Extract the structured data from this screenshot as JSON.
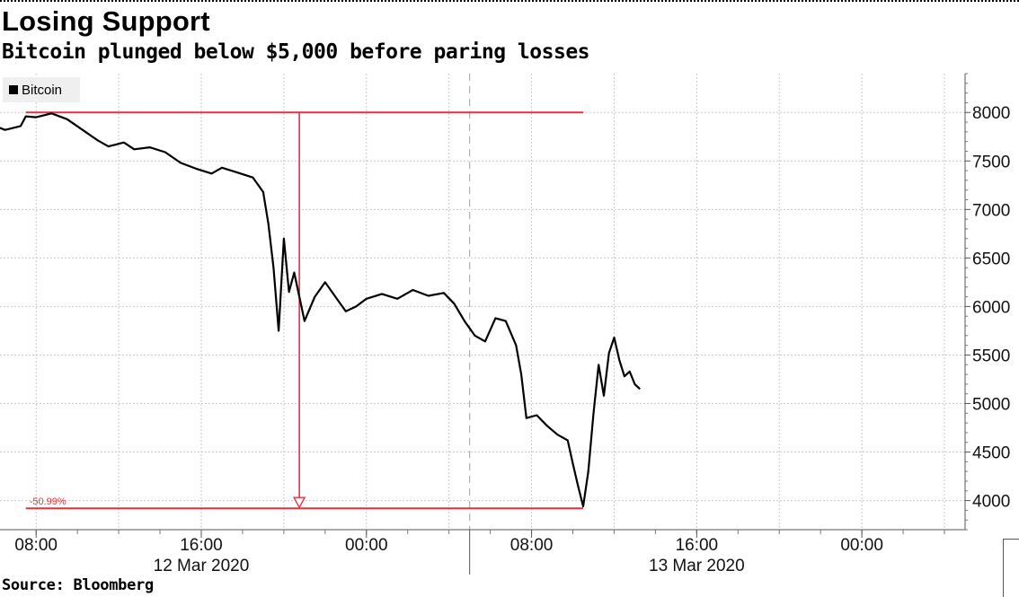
{
  "title": "Losing Support",
  "subtitle": "Bitcoin plunged below $5,000 before paring losses",
  "source": "Source: Bloomberg",
  "chart_data": {
    "type": "line",
    "series": [
      {
        "name": "Bitcoin",
        "color": "#000000",
        "points": [
          [
            "2020-03-12 05:45",
            7880
          ],
          [
            "2020-03-12 06:30",
            7820
          ],
          [
            "2020-03-12 07:15",
            7860
          ],
          [
            "2020-03-12 07:30",
            7960
          ],
          [
            "2020-03-12 08:00",
            7950
          ],
          [
            "2020-03-12 08:45",
            7990
          ],
          [
            "2020-03-12 09:30",
            7930
          ],
          [
            "2020-03-12 10:15",
            7820
          ],
          [
            "2020-03-12 11:00",
            7710
          ],
          [
            "2020-03-12 11:30",
            7650
          ],
          [
            "2020-03-12 12:15",
            7690
          ],
          [
            "2020-03-12 12:45",
            7620
          ],
          [
            "2020-03-12 13:30",
            7640
          ],
          [
            "2020-03-12 14:15",
            7590
          ],
          [
            "2020-03-12 15:00",
            7480
          ],
          [
            "2020-03-12 15:45",
            7420
          ],
          [
            "2020-03-12 16:30",
            7370
          ],
          [
            "2020-03-12 17:00",
            7430
          ],
          [
            "2020-03-12 17:45",
            7380
          ],
          [
            "2020-03-12 18:30",
            7330
          ],
          [
            "2020-03-12 19:00",
            7180
          ],
          [
            "2020-03-12 19:15",
            6850
          ],
          [
            "2020-03-12 19:30",
            6400
          ],
          [
            "2020-03-12 19:45",
            5750
          ],
          [
            "2020-03-12 20:00",
            6700
          ],
          [
            "2020-03-12 20:15",
            6150
          ],
          [
            "2020-03-12 20:30",
            6350
          ],
          [
            "2020-03-12 21:00",
            5850
          ],
          [
            "2020-03-12 21:30",
            6100
          ],
          [
            "2020-03-12 22:00",
            6250
          ],
          [
            "2020-03-12 22:30",
            6100
          ],
          [
            "2020-03-12 23:00",
            5950
          ],
          [
            "2020-03-12 23:30",
            6000
          ],
          [
            "2020-03-13 00:00",
            6080
          ],
          [
            "2020-03-13 00:45",
            6130
          ],
          [
            "2020-03-13 01:30",
            6080
          ],
          [
            "2020-03-13 02:15",
            6170
          ],
          [
            "2020-03-13 03:00",
            6110
          ],
          [
            "2020-03-13 03:45",
            6140
          ],
          [
            "2020-03-13 04:15",
            6030
          ],
          [
            "2020-03-13 04:45",
            5850
          ],
          [
            "2020-03-13 05:15",
            5700
          ],
          [
            "2020-03-13 05:45",
            5640
          ],
          [
            "2020-03-13 06:15",
            5880
          ],
          [
            "2020-03-13 06:45",
            5850
          ],
          [
            "2020-03-13 07:15",
            5600
          ],
          [
            "2020-03-13 07:30",
            5300
          ],
          [
            "2020-03-13 07:45",
            4850
          ],
          [
            "2020-03-13 08:15",
            4880
          ],
          [
            "2020-03-13 08:45",
            4770
          ],
          [
            "2020-03-13 09:15",
            4680
          ],
          [
            "2020-03-13 09:45",
            4620
          ],
          [
            "2020-03-13 10:00",
            4380
          ],
          [
            "2020-03-13 10:15",
            4150
          ],
          [
            "2020-03-13 10:30",
            3940
          ],
          [
            "2020-03-13 10:45",
            4300
          ],
          [
            "2020-03-13 11:00",
            4900
          ],
          [
            "2020-03-13 11:15",
            5400
          ],
          [
            "2020-03-13 11:30",
            5080
          ],
          [
            "2020-03-13 11:45",
            5520
          ],
          [
            "2020-03-13 12:00",
            5680
          ],
          [
            "2020-03-13 12:15",
            5450
          ],
          [
            "2020-03-13 12:30",
            5280
          ],
          [
            "2020-03-13 12:45",
            5330
          ],
          [
            "2020-03-13 13:00",
            5200
          ],
          [
            "2020-03-13 13:15",
            5150
          ]
        ]
      }
    ],
    "annotations": [
      {
        "type": "hline",
        "y": 8000,
        "from": "2020-03-12 07:30",
        "to": "2020-03-13 10:30",
        "color": "#e8303e"
      },
      {
        "type": "hline",
        "y": 3920,
        "from": "2020-03-12 07:30",
        "to": "2020-03-13 10:30",
        "color": "#e8303e"
      },
      {
        "type": "arrow",
        "x": "2020-03-12 20:45",
        "from_y": 8000,
        "to_y": 3920,
        "color": "#e8303e"
      },
      {
        "type": "label",
        "text": "-50.99%",
        "x": "2020-03-12 07:30",
        "y": 3920,
        "color": "#e8303e"
      }
    ],
    "x_ticks": [
      {
        "at": "2020-03-12 08:00",
        "label": "08:00"
      },
      {
        "at": "2020-03-12 16:00",
        "label": "16:00"
      },
      {
        "at": "2020-03-13 00:00",
        "label": "00:00"
      },
      {
        "at": "2020-03-13 08:00",
        "label": "08:00"
      },
      {
        "at": "2020-03-13 16:00",
        "label": "16:00"
      },
      {
        "at": "2020-03-14 00:00",
        "label": "00:00"
      }
    ],
    "date_labels": [
      {
        "at": "2020-03-12 16:00",
        "label": "12 Mar 2020"
      },
      {
        "at": "2020-03-13 16:00",
        "label": "13 Mar 2020"
      }
    ],
    "day_divider": "2020-03-13 05:00",
    "x_range": [
      "2020-03-12 06:15",
      "2020-03-14 05:00"
    ],
    "y_ticks": [
      4000,
      4500,
      5000,
      5500,
      6000,
      6500,
      7000,
      7500,
      8000
    ],
    "ylim": [
      3700,
      8400
    ],
    "y_axis_side": "right",
    "grid": true,
    "legend": "top-left"
  }
}
